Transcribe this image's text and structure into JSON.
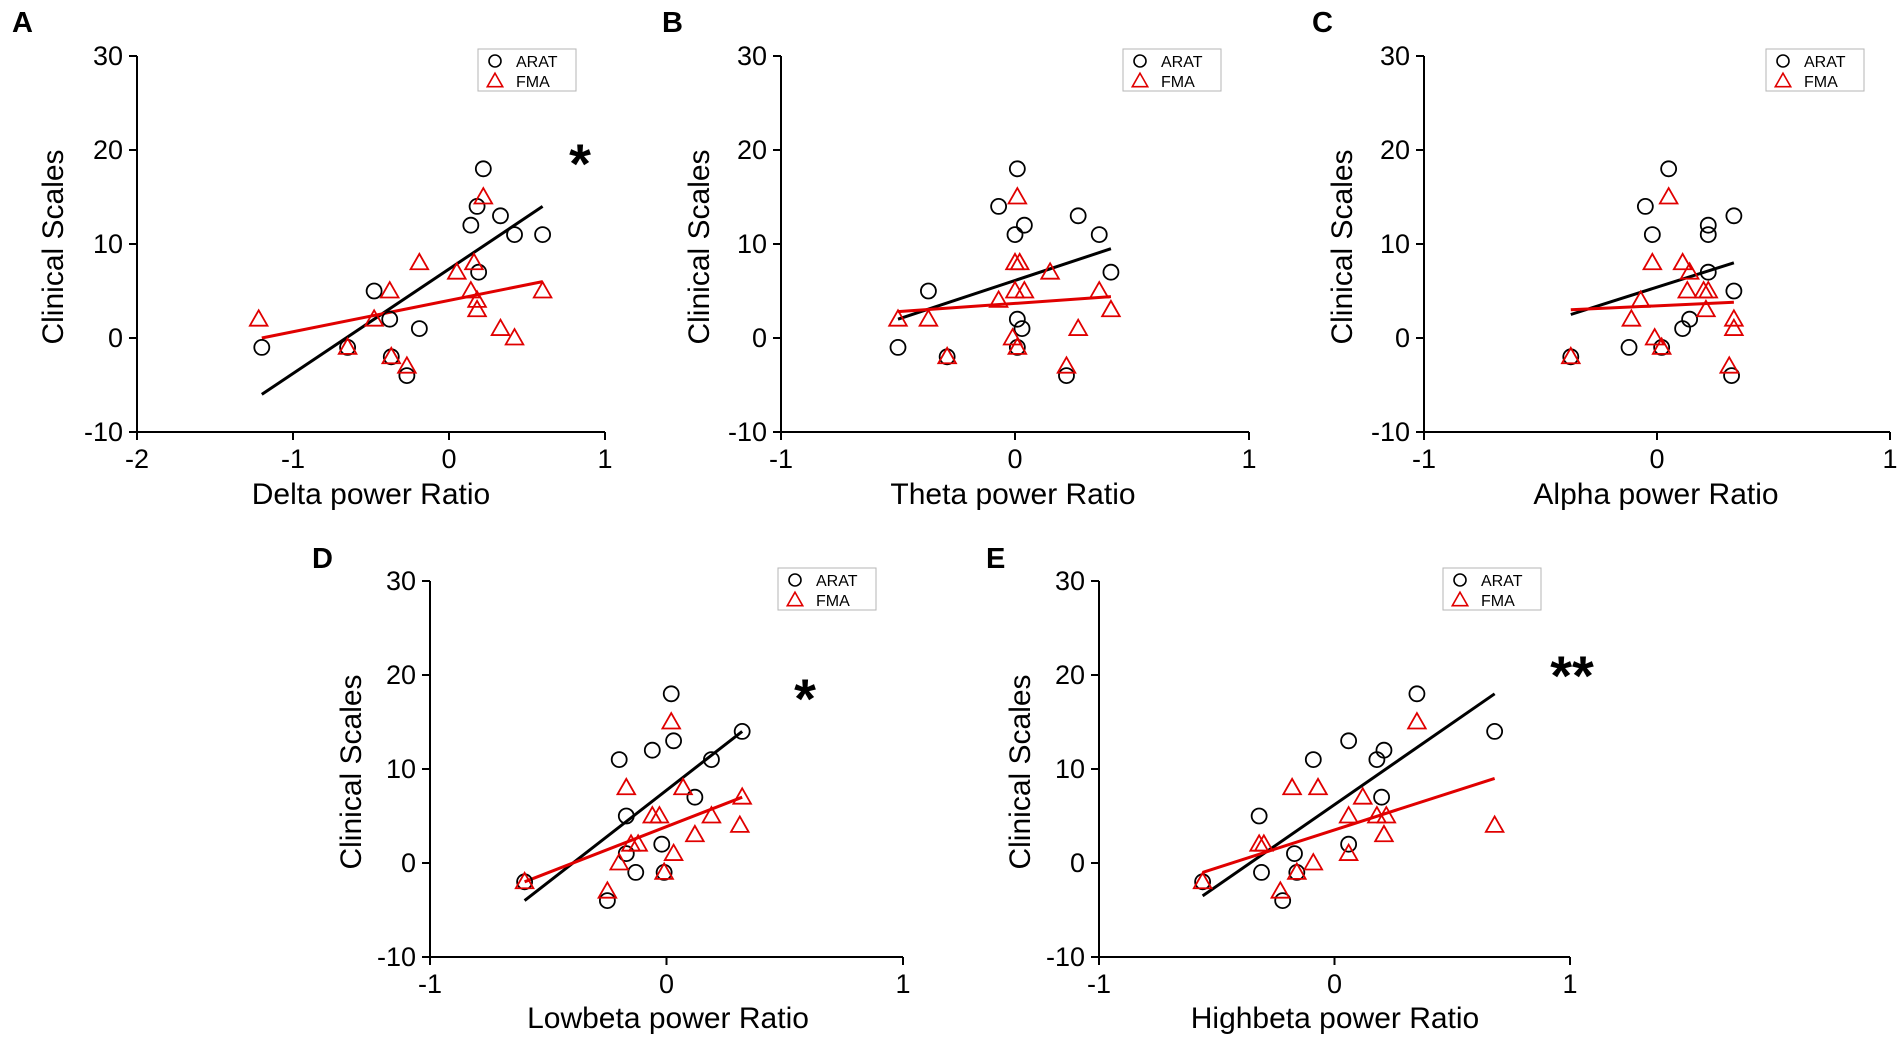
{
  "figure": {
    "background": "#ffffff"
  },
  "legend_labels": [
    "ARAT",
    "FMA"
  ],
  "colors": {
    "arat": "#000000",
    "fma": "#e00000",
    "axis": "#000000"
  },
  "chart_data": [
    {
      "id": "A",
      "type": "scatter",
      "xlabel": "Delta power Ratio",
      "ylabel": "Clinical Scales",
      "xlim": [
        -2,
        1
      ],
      "ylim": [
        -10,
        30
      ],
      "xticks": [
        -2,
        -1,
        0,
        1
      ],
      "yticks": [
        -10,
        0,
        10,
        20,
        30
      ],
      "significance": "*",
      "series": [
        {
          "name": "ARAT",
          "marker": "circle",
          "points": [
            [
              -1.2,
              -1
            ],
            [
              -0.65,
              -1
            ],
            [
              -0.48,
              5
            ],
            [
              -0.38,
              2
            ],
            [
              -0.37,
              -2
            ],
            [
              -0.27,
              -4
            ],
            [
              -0.19,
              1
            ],
            [
              0.14,
              12
            ],
            [
              0.18,
              14
            ],
            [
              0.19,
              7
            ],
            [
              0.22,
              18
            ],
            [
              0.33,
              13
            ],
            [
              0.42,
              11
            ],
            [
              0.6,
              11
            ]
          ],
          "fit": [
            [
              -1.2,
              -6
            ],
            [
              0.6,
              14
            ]
          ]
        },
        {
          "name": "FMA",
          "marker": "triangle",
          "points": [
            [
              -1.22,
              2
            ],
            [
              -0.65,
              -1
            ],
            [
              -0.48,
              2
            ],
            [
              -0.38,
              5
            ],
            [
              -0.37,
              -2
            ],
            [
              -0.27,
              -3
            ],
            [
              -0.19,
              8
            ],
            [
              0.05,
              7
            ],
            [
              0.14,
              5
            ],
            [
              0.16,
              8
            ],
            [
              0.18,
              4
            ],
            [
              0.18,
              3
            ],
            [
              0.22,
              15
            ],
            [
              0.33,
              1
            ],
            [
              0.42,
              0
            ],
            [
              0.6,
              5
            ]
          ],
          "fit": [
            [
              -1.2,
              0
            ],
            [
              0.6,
              6
            ]
          ]
        }
      ]
    },
    {
      "id": "B",
      "type": "scatter",
      "xlabel": "Theta power Ratio",
      "ylabel": "Clinical Scales",
      "xlim": [
        -1,
        1
      ],
      "ylim": [
        -10,
        30
      ],
      "xticks": [
        -1,
        0,
        1
      ],
      "yticks": [
        -10,
        0,
        10,
        20,
        30
      ],
      "significance": "",
      "series": [
        {
          "name": "ARAT",
          "marker": "circle",
          "points": [
            [
              -0.5,
              -1
            ],
            [
              -0.37,
              5
            ],
            [
              -0.29,
              -2
            ],
            [
              -0.07,
              14
            ],
            [
              0,
              11
            ],
            [
              0.01,
              18
            ],
            [
              0.01,
              2
            ],
            [
              0.01,
              -1
            ],
            [
              0.03,
              1
            ],
            [
              0.04,
              12
            ],
            [
              0.22,
              -4
            ],
            [
              0.27,
              13
            ],
            [
              0.36,
              11
            ],
            [
              0.41,
              7
            ]
          ],
          "fit": [
            [
              -0.5,
              2
            ],
            [
              0.41,
              9.5
            ]
          ]
        },
        {
          "name": "FMA",
          "marker": "triangle",
          "points": [
            [
              -0.5,
              2
            ],
            [
              -0.37,
              2
            ],
            [
              -0.29,
              -2
            ],
            [
              -0.07,
              4
            ],
            [
              -0.01,
              0
            ],
            [
              0,
              5
            ],
            [
              0,
              8
            ],
            [
              0.01,
              15
            ],
            [
              0.01,
              -1
            ],
            [
              0.02,
              8
            ],
            [
              0.04,
              5
            ],
            [
              0.15,
              7
            ],
            [
              0.22,
              -3
            ],
            [
              0.27,
              1
            ],
            [
              0.36,
              5
            ],
            [
              0.41,
              3
            ]
          ],
          "fit": [
            [
              -0.5,
              2.8
            ],
            [
              0.41,
              4.4
            ]
          ]
        }
      ]
    },
    {
      "id": "C",
      "type": "scatter",
      "xlabel": "Alpha power Ratio",
      "ylabel": "Clinical Scales",
      "xlim": [
        -1,
        1
      ],
      "ylim": [
        -10,
        30
      ],
      "xticks": [
        -1,
        0,
        1
      ],
      "yticks": [
        -10,
        0,
        10,
        20,
        30
      ],
      "significance": "",
      "series": [
        {
          "name": "ARAT",
          "marker": "circle",
          "points": [
            [
              -0.37,
              -2
            ],
            [
              -0.12,
              -1
            ],
            [
              -0.05,
              14
            ],
            [
              -0.02,
              11
            ],
            [
              0.02,
              -1
            ],
            [
              0.05,
              18
            ],
            [
              0.11,
              1
            ],
            [
              0.14,
              2
            ],
            [
              0.22,
              12
            ],
            [
              0.22,
              11
            ],
            [
              0.22,
              7
            ],
            [
              0.32,
              -4
            ],
            [
              0.33,
              13
            ],
            [
              0.33,
              5
            ]
          ],
          "fit": [
            [
              -0.37,
              2.5
            ],
            [
              0.33,
              8
            ]
          ]
        },
        {
          "name": "FMA",
          "marker": "triangle",
          "points": [
            [
              -0.37,
              -2
            ],
            [
              -0.11,
              2
            ],
            [
              -0.07,
              4
            ],
            [
              -0.02,
              8
            ],
            [
              -0.01,
              0
            ],
            [
              0.02,
              -1
            ],
            [
              0.05,
              15
            ],
            [
              0.11,
              8
            ],
            [
              0.13,
              5
            ],
            [
              0.14,
              7
            ],
            [
              0.2,
              5
            ],
            [
              0.21,
              3
            ],
            [
              0.22,
              5
            ],
            [
              0.31,
              -3
            ],
            [
              0.33,
              1
            ],
            [
              0.33,
              2
            ]
          ],
          "fit": [
            [
              -0.37,
              3
            ],
            [
              0.33,
              3.8
            ]
          ]
        }
      ]
    },
    {
      "id": "D",
      "type": "scatter",
      "xlabel": "Lowbeta power Ratio",
      "ylabel": "Clinical Scales",
      "xlim": [
        -1,
        1
      ],
      "ylim": [
        -10,
        30
      ],
      "xticks": [
        -1,
        0,
        1
      ],
      "yticks": [
        -10,
        0,
        10,
        20,
        30
      ],
      "significance": "*",
      "series": [
        {
          "name": "ARAT",
          "marker": "circle",
          "points": [
            [
              -0.6,
              -2
            ],
            [
              -0.25,
              -4
            ],
            [
              -0.2,
              11
            ],
            [
              -0.17,
              5
            ],
            [
              -0.17,
              1
            ],
            [
              -0.13,
              -1
            ],
            [
              -0.06,
              12
            ],
            [
              -0.02,
              2
            ],
            [
              -0.01,
              -1
            ],
            [
              0.02,
              18
            ],
            [
              0.03,
              13
            ],
            [
              0.12,
              7
            ],
            [
              0.19,
              11
            ],
            [
              0.32,
              14
            ]
          ],
          "fit": [
            [
              -0.6,
              -4
            ],
            [
              0.32,
              14
            ]
          ]
        },
        {
          "name": "FMA",
          "marker": "triangle",
          "points": [
            [
              -0.6,
              -2
            ],
            [
              -0.25,
              -3
            ],
            [
              -0.2,
              0
            ],
            [
              -0.17,
              8
            ],
            [
              -0.15,
              2
            ],
            [
              -0.12,
              2
            ],
            [
              -0.06,
              5
            ],
            [
              -0.03,
              5
            ],
            [
              -0.01,
              -1
            ],
            [
              0.02,
              15
            ],
            [
              0.03,
              1
            ],
            [
              0.07,
              8
            ],
            [
              0.12,
              3
            ],
            [
              0.19,
              5
            ],
            [
              0.31,
              4
            ],
            [
              0.32,
              7
            ]
          ],
          "fit": [
            [
              -0.6,
              -2
            ],
            [
              0.32,
              7
            ]
          ]
        }
      ]
    },
    {
      "id": "E",
      "type": "scatter",
      "xlabel": "Highbeta power Ratio",
      "ylabel": "Clinical Scales",
      "xlim": [
        -1,
        1
      ],
      "ylim": [
        -10,
        30
      ],
      "xticks": [
        -1,
        0,
        1
      ],
      "yticks": [
        -10,
        0,
        10,
        20,
        30
      ],
      "significance": "**",
      "series": [
        {
          "name": "ARAT",
          "marker": "circle",
          "points": [
            [
              -0.56,
              -2
            ],
            [
              -0.32,
              5
            ],
            [
              -0.31,
              -1
            ],
            [
              -0.22,
              -4
            ],
            [
              -0.17,
              1
            ],
            [
              -0.16,
              -1
            ],
            [
              -0.09,
              11
            ],
            [
              0.06,
              13
            ],
            [
              0.06,
              2
            ],
            [
              0.18,
              11
            ],
            [
              0.21,
              12
            ],
            [
              0.2,
              7
            ],
            [
              0.35,
              18
            ],
            [
              0.68,
              14
            ]
          ],
          "fit": [
            [
              -0.56,
              -3.5
            ],
            [
              0.68,
              18
            ]
          ]
        },
        {
          "name": "FMA",
          "marker": "triangle",
          "points": [
            [
              -0.56,
              -2
            ],
            [
              -0.32,
              2
            ],
            [
              -0.3,
              2
            ],
            [
              -0.23,
              -3
            ],
            [
              -0.18,
              8
            ],
            [
              -0.16,
              -1
            ],
            [
              -0.09,
              0
            ],
            [
              -0.07,
              8
            ],
            [
              0.06,
              1
            ],
            [
              0.06,
              5
            ],
            [
              0.12,
              7
            ],
            [
              0.18,
              5
            ],
            [
              0.21,
              3
            ],
            [
              0.22,
              5
            ],
            [
              0.35,
              15
            ],
            [
              0.68,
              4
            ]
          ],
          "fit": [
            [
              -0.56,
              -1
            ],
            [
              0.68,
              9
            ]
          ]
        }
      ]
    }
  ]
}
